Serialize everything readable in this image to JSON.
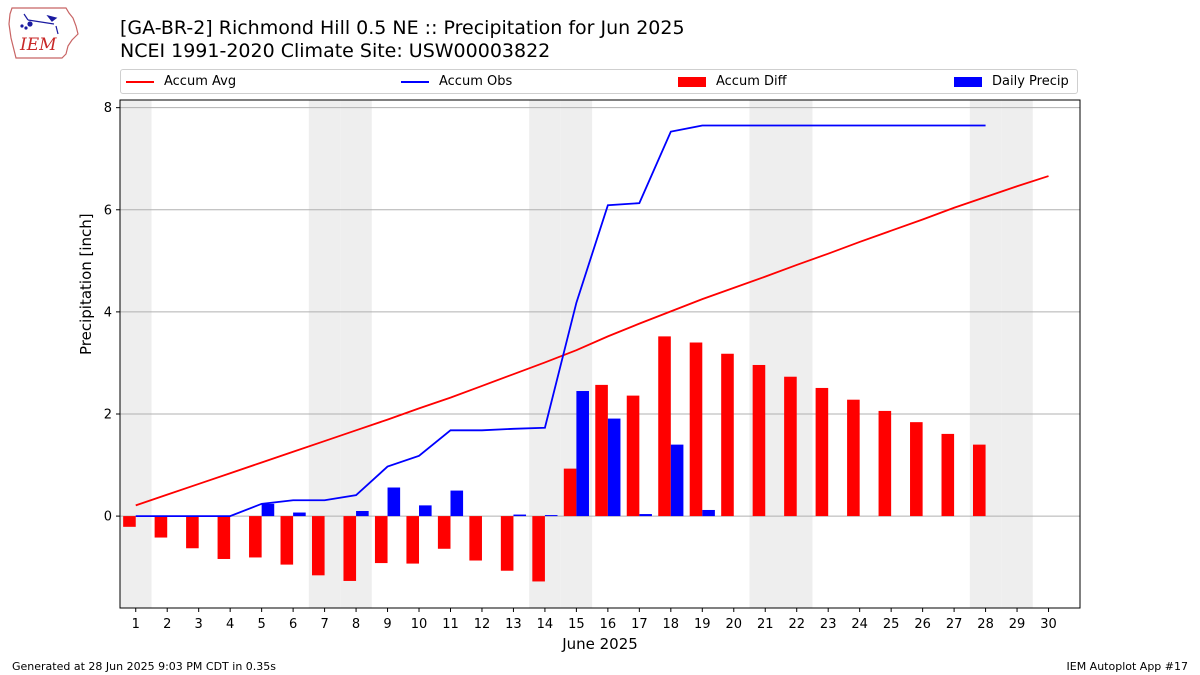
{
  "header": {
    "title_line1": "[GA-BR-2] Richmond Hill 0.5 NE :: Precipitation for Jun 2025",
    "title_line2": "NCEI 1991-2020 Climate Site: USW00003822"
  },
  "logo": {
    "text": "IEM",
    "icon": "iem-iowa-logo-icon"
  },
  "footer": {
    "generated": "Generated at 28 Jun 2025 9:03 PM CDT in 0.35s",
    "app": "IEM Autoplot App #17"
  },
  "colors": {
    "avg": "#ff0000",
    "obs": "#0000ff",
    "diff": "#ff0000",
    "daily": "#0000ff",
    "weekend": "#eeeeee",
    "grid": "#b0b0b0"
  },
  "chart_data": {
    "type": "bar",
    "xlabel": "June 2025",
    "ylabel": "Precipitation [inch]",
    "xlim": [
      0.5,
      31
    ],
    "ylim": [
      -1.8,
      8.15
    ],
    "yticks": [
      0,
      2,
      4,
      6,
      8
    ],
    "days": [
      1,
      2,
      3,
      4,
      5,
      6,
      7,
      8,
      9,
      10,
      11,
      12,
      13,
      14,
      15,
      16,
      17,
      18,
      19,
      20,
      21,
      22,
      23,
      24,
      25,
      26,
      27,
      28,
      29,
      30
    ],
    "weekend_days": [
      1,
      7,
      8,
      14,
      15,
      21,
      22,
      28,
      29
    ],
    "legend": [
      {
        "label": "Accum Avg",
        "kind": "line",
        "color": "#ff0000"
      },
      {
        "label": "Accum Obs",
        "kind": "line",
        "color": "#0000ff"
      },
      {
        "label": "Accum Diff",
        "kind": "bar",
        "color": "#ff0000"
      },
      {
        "label": "Daily Precip",
        "kind": "bar",
        "color": "#0000ff"
      }
    ],
    "series": [
      {
        "name": "Accum Avg",
        "type": "line",
        "values": [
          0.21,
          0.42,
          0.63,
          0.84,
          1.05,
          1.26,
          1.47,
          1.68,
          1.89,
          2.11,
          2.32,
          2.55,
          2.78,
          3.01,
          3.25,
          3.52,
          3.77,
          4.01,
          4.25,
          4.47,
          4.69,
          4.92,
          5.14,
          5.37,
          5.59,
          5.81,
          6.04,
          6.25,
          6.46,
          6.66
        ]
      },
      {
        "name": "Accum Obs",
        "type": "line",
        "values": [
          0.0,
          0.0,
          0.0,
          0.0,
          0.24,
          0.31,
          0.31,
          0.41,
          0.97,
          1.18,
          1.68,
          1.68,
          1.71,
          1.73,
          4.18,
          6.09,
          6.13,
          7.53,
          7.65,
          7.65,
          7.65,
          7.65,
          7.65,
          7.65,
          7.65,
          7.65,
          7.65,
          7.65
        ]
      },
      {
        "name": "Accum Diff",
        "type": "bar",
        "values": [
          -0.21,
          -0.42,
          -0.63,
          -0.84,
          -0.81,
          -0.95,
          -1.16,
          -1.27,
          -0.92,
          -0.93,
          -0.64,
          -0.87,
          -1.07,
          -1.28,
          0.93,
          2.57,
          2.36,
          3.52,
          3.4,
          3.18,
          2.96,
          2.73,
          2.51,
          2.28,
          2.06,
          1.84,
          1.61,
          1.4
        ]
      },
      {
        "name": "Daily Precip",
        "type": "bar",
        "values": [
          0.0,
          0.0,
          0.0,
          0.0,
          0.24,
          0.07,
          0.0,
          0.1,
          0.56,
          0.21,
          0.5,
          0.0,
          0.03,
          0.02,
          2.45,
          1.91,
          0.04,
          1.4,
          0.12,
          0.0,
          0.0,
          0.0,
          0.0,
          0.0,
          0.0,
          0.0,
          0.0,
          0.0
        ]
      }
    ]
  }
}
